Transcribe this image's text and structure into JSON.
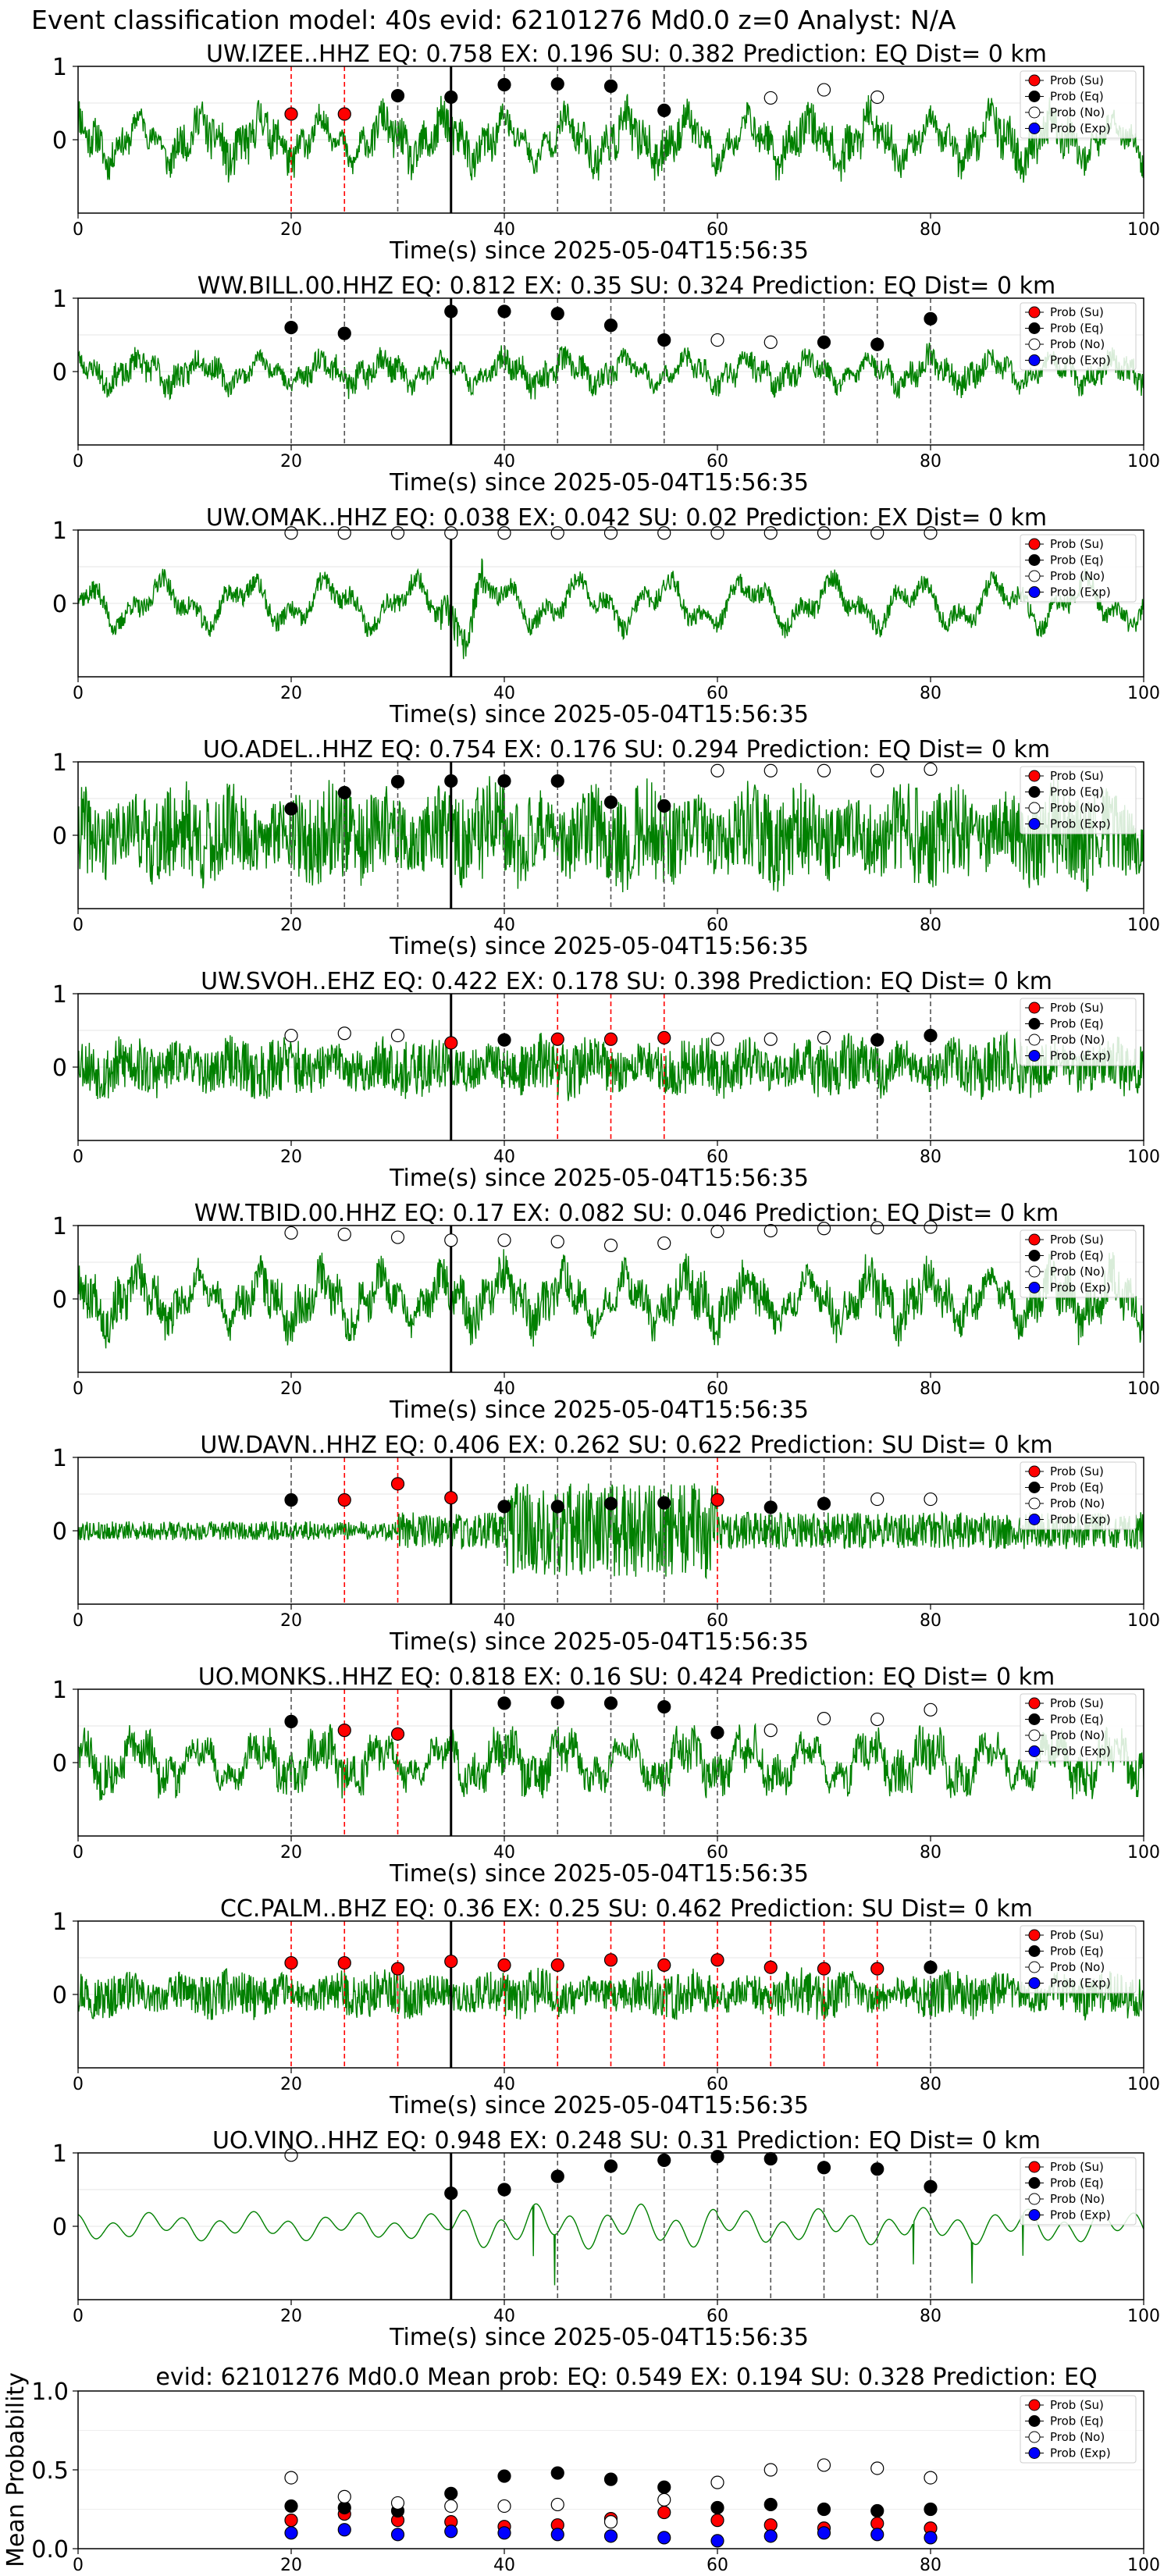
{
  "figure": {
    "suptitle": "Event classification model: 40s evid: 62101276 Md0.0 z=0 Analyst: N/A"
  },
  "colors": {
    "trace": "#008000",
    "su": "#ff0000",
    "eq": "#000000",
    "no_face": "#ffffff",
    "exp": "#0000ff",
    "red_line": "#ff0000",
    "gray_line": "#555555",
    "arrival": "#000000"
  },
  "legend_labels": [
    "Prob (Su)",
    "Prob (Eq)",
    "Prob (No)",
    "Prob (Exp)"
  ],
  "chart_data": [
    {
      "type": "line",
      "title": "UW.IZEE..HHZ   EQ: 0.758  EX: 0.196  SU: 0.382   Prediction: EQ    Dist= 0 km",
      "xlabel": "Time(s) since 2025-05-04T15:56:35",
      "xlim": [
        0,
        100
      ],
      "ylim": [
        -1,
        1
      ],
      "xticks": [
        "0",
        "20",
        "40",
        "60",
        "80",
        "100"
      ],
      "yticks": [
        "0",
        "1"
      ],
      "grid": "horizontal",
      "legend": "top-right",
      "arrival_time": 35,
      "waveform": {
        "style": "mixed",
        "amp": 0.55,
        "seed": 11
      },
      "windows": [
        {
          "t": 20,
          "cls": "su",
          "p": 0.35
        },
        {
          "t": 25,
          "cls": "su",
          "p": 0.35
        },
        {
          "t": 30,
          "cls": "eq",
          "p": 0.6
        },
        {
          "t": 35,
          "cls": "eq",
          "p": 0.58
        },
        {
          "t": 40,
          "cls": "eq",
          "p": 0.75
        },
        {
          "t": 45,
          "cls": "eq",
          "p": 0.76
        },
        {
          "t": 50,
          "cls": "eq",
          "p": 0.73
        },
        {
          "t": 55,
          "cls": "eq",
          "p": 0.4
        },
        {
          "t": 65,
          "cls": "no",
          "p": 0.57
        },
        {
          "t": 70,
          "cls": "no",
          "p": 0.68
        },
        {
          "t": 75,
          "cls": "no",
          "p": 0.58
        }
      ]
    },
    {
      "type": "line",
      "title": "WW.BILL.00.HHZ   EQ: 0.812  EX: 0.35  SU: 0.324   Prediction: EQ    Dist= 0 km",
      "xlabel": "Time(s) since 2025-05-04T15:56:35",
      "xlim": [
        0,
        100
      ],
      "ylim": [
        -1,
        1
      ],
      "xticks": [
        "0",
        "20",
        "40",
        "60",
        "80",
        "100"
      ],
      "yticks": [
        "0",
        "1"
      ],
      "grid": "horizontal",
      "legend": "top-right",
      "arrival_time": 35,
      "waveform": {
        "style": "mixed",
        "amp": 0.35,
        "seed": 23
      },
      "windows": [
        {
          "t": 20,
          "cls": "eq",
          "p": 0.6
        },
        {
          "t": 25,
          "cls": "eq",
          "p": 0.52
        },
        {
          "t": 35,
          "cls": "eq",
          "p": 0.82
        },
        {
          "t": 40,
          "cls": "eq",
          "p": 0.82
        },
        {
          "t": 45,
          "cls": "eq",
          "p": 0.79
        },
        {
          "t": 50,
          "cls": "eq",
          "p": 0.63
        },
        {
          "t": 55,
          "cls": "eq",
          "p": 0.43
        },
        {
          "t": 60,
          "cls": "no",
          "p": 0.43
        },
        {
          "t": 65,
          "cls": "no",
          "p": 0.4
        },
        {
          "t": 70,
          "cls": "eq",
          "p": 0.4
        },
        {
          "t": 75,
          "cls": "eq",
          "p": 0.37
        },
        {
          "t": 80,
          "cls": "eq",
          "p": 0.72
        }
      ]
    },
    {
      "type": "line",
      "title": "UW.OMAK..HHZ   EQ: 0.038  EX: 0.042  SU: 0.02   Prediction: EX    Dist= 0 km",
      "xlabel": "Time(s) since 2025-05-04T15:56:35",
      "xlim": [
        0,
        100
      ],
      "ylim": [
        -1,
        1
      ],
      "xticks": [
        "0",
        "20",
        "40",
        "60",
        "80",
        "100"
      ],
      "yticks": [
        "0",
        "1"
      ],
      "grid": "horizontal",
      "legend": "top-right",
      "arrival_time": 35,
      "waveform": {
        "style": "lowfreq",
        "amp": 0.5,
        "seed": 37
      },
      "windows": [
        {
          "t": 20,
          "cls": "no",
          "p": 0.96
        },
        {
          "t": 25,
          "cls": "no",
          "p": 0.96
        },
        {
          "t": 30,
          "cls": "no",
          "p": 0.96
        },
        {
          "t": 35,
          "cls": "no",
          "p": 0.96
        },
        {
          "t": 40,
          "cls": "no",
          "p": 0.96
        },
        {
          "t": 45,
          "cls": "no",
          "p": 0.96
        },
        {
          "t": 50,
          "cls": "no",
          "p": 0.96
        },
        {
          "t": 55,
          "cls": "no",
          "p": 0.96
        },
        {
          "t": 60,
          "cls": "no",
          "p": 0.96
        },
        {
          "t": 65,
          "cls": "no",
          "p": 0.96
        },
        {
          "t": 70,
          "cls": "no",
          "p": 0.96
        },
        {
          "t": 75,
          "cls": "no",
          "p": 0.96
        },
        {
          "t": 80,
          "cls": "no",
          "p": 0.96
        }
      ]
    },
    {
      "type": "line",
      "title": "UO.ADEL..HHZ   EQ: 0.754  EX: 0.176  SU: 0.294   Prediction: EQ    Dist= 0 km",
      "xlabel": "Time(s) since 2025-05-04T15:56:35",
      "xlim": [
        0,
        100
      ],
      "ylim": [
        -1,
        1
      ],
      "xticks": [
        "0",
        "20",
        "40",
        "60",
        "80",
        "100"
      ],
      "yticks": [
        "0",
        "1"
      ],
      "grid": "horizontal",
      "legend": "top-right",
      "arrival_time": 35,
      "waveform": {
        "style": "noisy",
        "amp": 0.75,
        "seed": 41
      },
      "windows": [
        {
          "t": 20,
          "cls": "eq",
          "p": 0.36
        },
        {
          "t": 25,
          "cls": "eq",
          "p": 0.58
        },
        {
          "t": 30,
          "cls": "eq",
          "p": 0.73
        },
        {
          "t": 35,
          "cls": "eq",
          "p": 0.74
        },
        {
          "t": 40,
          "cls": "eq",
          "p": 0.74
        },
        {
          "t": 45,
          "cls": "eq",
          "p": 0.74
        },
        {
          "t": 50,
          "cls": "eq",
          "p": 0.45
        },
        {
          "t": 55,
          "cls": "eq",
          "p": 0.4
        },
        {
          "t": 60,
          "cls": "no",
          "p": 0.88
        },
        {
          "t": 65,
          "cls": "no",
          "p": 0.88
        },
        {
          "t": 70,
          "cls": "no",
          "p": 0.88
        },
        {
          "t": 75,
          "cls": "no",
          "p": 0.88
        },
        {
          "t": 80,
          "cls": "no",
          "p": 0.9
        }
      ]
    },
    {
      "type": "line",
      "title": "UW.SVOH..EHZ   EQ: 0.422  EX: 0.178  SU: 0.398   Prediction: EQ    Dist= 0 km",
      "xlabel": "Time(s) since 2025-05-04T15:56:35",
      "xlim": [
        0,
        100
      ],
      "ylim": [
        -1,
        1
      ],
      "xticks": [
        "0",
        "20",
        "40",
        "60",
        "80",
        "100"
      ],
      "yticks": [
        "0",
        "1"
      ],
      "grid": "horizontal",
      "legend": "top-right",
      "arrival_time": 35,
      "waveform": {
        "style": "noisy",
        "amp": 0.45,
        "seed": 53
      },
      "windows": [
        {
          "t": 20,
          "cls": "no",
          "p": 0.43
        },
        {
          "t": 25,
          "cls": "no",
          "p": 0.46
        },
        {
          "t": 30,
          "cls": "no",
          "p": 0.43
        },
        {
          "t": 35,
          "cls": "su",
          "p": 0.33
        },
        {
          "t": 40,
          "cls": "eq",
          "p": 0.37
        },
        {
          "t": 45,
          "cls": "su",
          "p": 0.38
        },
        {
          "t": 50,
          "cls": "su",
          "p": 0.38
        },
        {
          "t": 55,
          "cls": "su",
          "p": 0.4
        },
        {
          "t": 60,
          "cls": "no",
          "p": 0.38
        },
        {
          "t": 65,
          "cls": "no",
          "p": 0.38
        },
        {
          "t": 70,
          "cls": "no",
          "p": 0.4
        },
        {
          "t": 75,
          "cls": "eq",
          "p": 0.37
        },
        {
          "t": 80,
          "cls": "eq",
          "p": 0.43
        }
      ]
    },
    {
      "type": "line",
      "title": "WW.TBID.00.HHZ   EQ: 0.17  EX: 0.082  SU: 0.046   Prediction: EQ    Dist= 0 km",
      "xlabel": "Time(s) since 2025-05-04T15:56:35",
      "xlim": [
        0,
        100
      ],
      "ylim": [
        -1,
        1
      ],
      "xticks": [
        "0",
        "20",
        "40",
        "60",
        "80",
        "100"
      ],
      "yticks": [
        "0",
        "1"
      ],
      "grid": "horizontal",
      "legend": "top-right",
      "arrival_time": 35,
      "waveform": {
        "style": "mixed",
        "amp": 0.6,
        "seed": 67
      },
      "windows": [
        {
          "t": 20,
          "cls": "no",
          "p": 0.9
        },
        {
          "t": 25,
          "cls": "no",
          "p": 0.88
        },
        {
          "t": 30,
          "cls": "no",
          "p": 0.84
        },
        {
          "t": 35,
          "cls": "no",
          "p": 0.8
        },
        {
          "t": 40,
          "cls": "no",
          "p": 0.8
        },
        {
          "t": 45,
          "cls": "no",
          "p": 0.78
        },
        {
          "t": 50,
          "cls": "no",
          "p": 0.73
        },
        {
          "t": 55,
          "cls": "no",
          "p": 0.76
        },
        {
          "t": 60,
          "cls": "no",
          "p": 0.92
        },
        {
          "t": 65,
          "cls": "no",
          "p": 0.93
        },
        {
          "t": 70,
          "cls": "no",
          "p": 0.96
        },
        {
          "t": 75,
          "cls": "no",
          "p": 0.97
        },
        {
          "t": 80,
          "cls": "no",
          "p": 0.98
        }
      ]
    },
    {
      "type": "line",
      "title": "UW.DAVN..HHZ   EQ: 0.406  EX: 0.262  SU: 0.622   Prediction: SU    Dist= 0 km",
      "xlabel": "Time(s) since 2025-05-04T15:56:35",
      "xlim": [
        0,
        100
      ],
      "ylim": [
        -1,
        1
      ],
      "xticks": [
        "0",
        "20",
        "40",
        "60",
        "80",
        "100"
      ],
      "yticks": [
        "0",
        "1"
      ],
      "grid": "horizontal",
      "legend": "top-right",
      "arrival_time": 35,
      "waveform": {
        "style": "quiet_burst",
        "amp": 0.8,
        "seed": 79
      },
      "windows": [
        {
          "t": 20,
          "cls": "eq",
          "p": 0.42
        },
        {
          "t": 25,
          "cls": "su",
          "p": 0.42
        },
        {
          "t": 30,
          "cls": "su",
          "p": 0.64
        },
        {
          "t": 35,
          "cls": "su",
          "p": 0.45
        },
        {
          "t": 40,
          "cls": "eq",
          "p": 0.33
        },
        {
          "t": 45,
          "cls": "eq",
          "p": 0.33
        },
        {
          "t": 50,
          "cls": "eq",
          "p": 0.37
        },
        {
          "t": 55,
          "cls": "eq",
          "p": 0.38
        },
        {
          "t": 60,
          "cls": "su",
          "p": 0.42
        },
        {
          "t": 65,
          "cls": "eq",
          "p": 0.32
        },
        {
          "t": 70,
          "cls": "eq",
          "p": 0.37
        },
        {
          "t": 75,
          "cls": "no",
          "p": 0.43
        },
        {
          "t": 80,
          "cls": "no",
          "p": 0.43
        }
      ]
    },
    {
      "type": "line",
      "title": "UO.MONKS..HHZ   EQ: 0.818  EX: 0.16  SU: 0.424   Prediction: EQ    Dist= 0 km",
      "xlabel": "Time(s) since 2025-05-04T15:56:35",
      "xlim": [
        0,
        100
      ],
      "ylim": [
        -1,
        1
      ],
      "xticks": [
        "0",
        "20",
        "40",
        "60",
        "80",
        "100"
      ],
      "yticks": [
        "0",
        "1"
      ],
      "grid": "horizontal",
      "legend": "top-right",
      "arrival_time": 35,
      "waveform": {
        "style": "mixed",
        "amp": 0.55,
        "seed": 83
      },
      "windows": [
        {
          "t": 20,
          "cls": "eq",
          "p": 0.56
        },
        {
          "t": 25,
          "cls": "su",
          "p": 0.44
        },
        {
          "t": 30,
          "cls": "su",
          "p": 0.39
        },
        {
          "t": 40,
          "cls": "eq",
          "p": 0.81
        },
        {
          "t": 45,
          "cls": "eq",
          "p": 0.82
        },
        {
          "t": 50,
          "cls": "eq",
          "p": 0.81
        },
        {
          "t": 55,
          "cls": "eq",
          "p": 0.76
        },
        {
          "t": 60,
          "cls": "eq",
          "p": 0.41
        },
        {
          "t": 65,
          "cls": "no",
          "p": 0.44
        },
        {
          "t": 70,
          "cls": "no",
          "p": 0.6
        },
        {
          "t": 75,
          "cls": "no",
          "p": 0.59
        },
        {
          "t": 80,
          "cls": "no",
          "p": 0.72
        }
      ]
    },
    {
      "type": "line",
      "title": "CC.PALM..BHZ   EQ: 0.36  EX: 0.25  SU: 0.462   Prediction: SU    Dist= 0 km",
      "xlabel": "Time(s) since 2025-05-04T15:56:35",
      "xlim": [
        0,
        100
      ],
      "ylim": [
        -1,
        1
      ],
      "xticks": [
        "0",
        "20",
        "40",
        "60",
        "80",
        "100"
      ],
      "yticks": [
        "0",
        "1"
      ],
      "grid": "horizontal",
      "legend": "top-right",
      "arrival_time": 35,
      "waveform": {
        "style": "noisy",
        "amp": 0.35,
        "seed": 97
      },
      "windows": [
        {
          "t": 20,
          "cls": "su",
          "p": 0.43
        },
        {
          "t": 25,
          "cls": "su",
          "p": 0.43
        },
        {
          "t": 30,
          "cls": "su",
          "p": 0.35
        },
        {
          "t": 35,
          "cls": "su",
          "p": 0.45
        },
        {
          "t": 40,
          "cls": "su",
          "p": 0.4
        },
        {
          "t": 45,
          "cls": "su",
          "p": 0.4
        },
        {
          "t": 50,
          "cls": "su",
          "p": 0.47
        },
        {
          "t": 55,
          "cls": "su",
          "p": 0.4
        },
        {
          "t": 60,
          "cls": "su",
          "p": 0.47
        },
        {
          "t": 65,
          "cls": "su",
          "p": 0.37
        },
        {
          "t": 70,
          "cls": "su",
          "p": 0.35
        },
        {
          "t": 75,
          "cls": "su",
          "p": 0.35
        },
        {
          "t": 80,
          "cls": "eq",
          "p": 0.37
        }
      ]
    },
    {
      "type": "line",
      "title": "UO.VINO..HHZ   EQ: 0.948  EX: 0.248  SU: 0.31   Prediction: EQ    Dist= 0 km",
      "xlabel": "Time(s) since 2025-05-04T15:56:35",
      "xlim": [
        0,
        100
      ],
      "ylim": [
        -1,
        1
      ],
      "xticks": [
        "0",
        "20",
        "40",
        "60",
        "80",
        "100"
      ],
      "yticks": [
        "0",
        "1"
      ],
      "grid": "horizontal",
      "legend": "top-right",
      "arrival_time": 35,
      "waveform": {
        "style": "sinusoid",
        "amp": 0.45,
        "seed": 101
      },
      "windows": [
        {
          "t": 20,
          "cls": "no",
          "p": 0.97
        },
        {
          "t": 35,
          "cls": "eq",
          "p": 0.45
        },
        {
          "t": 40,
          "cls": "eq",
          "p": 0.5
        },
        {
          "t": 45,
          "cls": "eq",
          "p": 0.68
        },
        {
          "t": 50,
          "cls": "eq",
          "p": 0.82
        },
        {
          "t": 55,
          "cls": "eq",
          "p": 0.9
        },
        {
          "t": 60,
          "cls": "eq",
          "p": 0.95
        },
        {
          "t": 65,
          "cls": "eq",
          "p": 0.92
        },
        {
          "t": 70,
          "cls": "eq",
          "p": 0.8
        },
        {
          "t": 75,
          "cls": "eq",
          "p": 0.78
        },
        {
          "t": 80,
          "cls": "eq",
          "p": 0.54
        }
      ]
    },
    {
      "type": "scatter",
      "title": "evid: 62101276  Md0.0   Mean prob:   EQ: 0.549  EX: 0.194  SU: 0.328   Prediction: EQ",
      "ylabel": "Mean Probability",
      "xlim": [
        0,
        100
      ],
      "ylim": [
        0,
        1
      ],
      "xticks": [
        "0",
        "20",
        "40",
        "60",
        "80",
        "100"
      ],
      "yticks": [
        "0.0",
        "0.5",
        "1.0"
      ],
      "grid": "horizontal",
      "legend": "top-right",
      "x": [
        20,
        25,
        30,
        35,
        40,
        45,
        50,
        55,
        60,
        65,
        70,
        75,
        80
      ],
      "series": [
        {
          "name": "Prob (Su)",
          "values": [
            0.18,
            0.22,
            0.18,
            0.17,
            0.14,
            0.15,
            0.19,
            0.23,
            0.18,
            0.15,
            0.13,
            0.16,
            0.13
          ]
        },
        {
          "name": "Prob (Eq)",
          "values": [
            0.27,
            0.26,
            0.24,
            0.35,
            0.46,
            0.48,
            0.44,
            0.39,
            0.26,
            0.28,
            0.25,
            0.24,
            0.25
          ]
        },
        {
          "name": "Prob (No)",
          "values": [
            0.45,
            0.33,
            0.29,
            0.27,
            0.27,
            0.28,
            0.17,
            0.31,
            0.42,
            0.5,
            0.53,
            0.51,
            0.45
          ]
        },
        {
          "name": "Prob (Exp)",
          "values": [
            0.1,
            0.12,
            0.09,
            0.11,
            0.1,
            0.09,
            0.08,
            0.07,
            0.05,
            0.08,
            0.1,
            0.09,
            0.07
          ]
        }
      ]
    }
  ]
}
